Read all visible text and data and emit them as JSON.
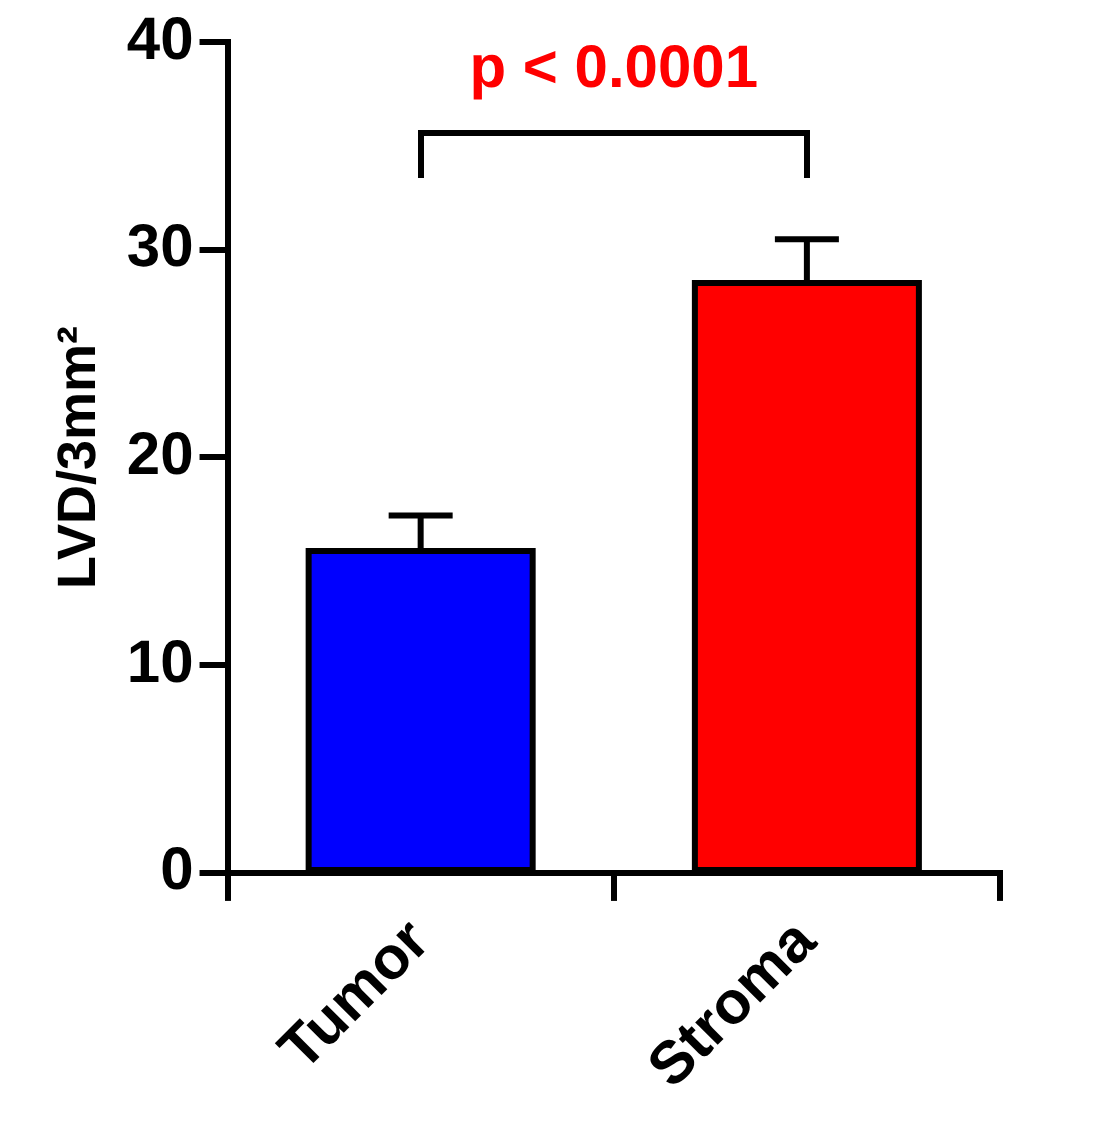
{
  "chart_data": {
    "type": "bar",
    "ylabel": "LVD/3mm²",
    "categories": [
      "Tumor",
      "Stroma"
    ],
    "values": [
      15.5,
      28.4
    ],
    "colors": [
      "#0000ff",
      "#ff0000"
    ],
    "errors": [
      [
        15.5,
        17.2
      ],
      [
        28.4,
        30.5
      ]
    ],
    "ylim": [
      0,
      40
    ],
    "yticks": [
      0,
      10,
      20,
      30,
      40
    ],
    "grid": false,
    "legend": false,
    "annotations": [
      "p < 0.0001"
    ]
  }
}
